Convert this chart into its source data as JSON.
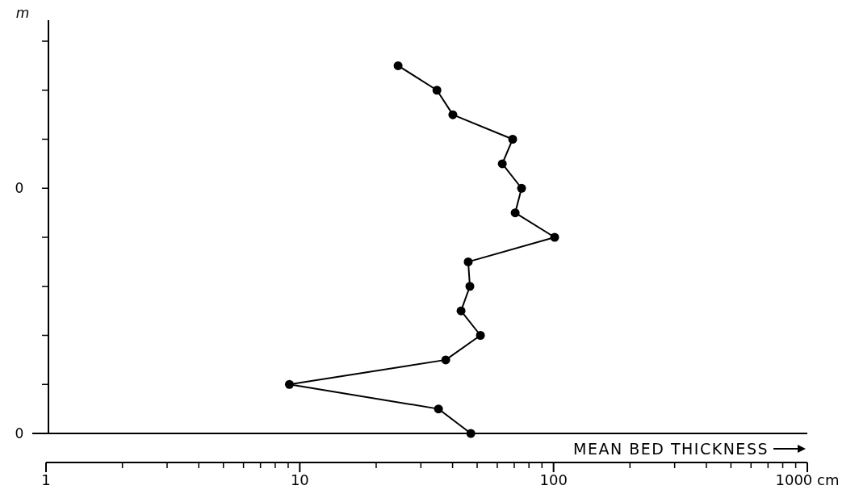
{
  "chart_data": {
    "type": "line",
    "orientation": "horizontal",
    "xlabel": "MEAN BED THICKNESS",
    "ylabel": "m",
    "log": "x",
    "xlim": [
      1,
      1000
    ],
    "xticks": [
      1,
      10,
      100,
      {
        "value": 1000,
        "label": "1000 cm"
      }
    ],
    "categories": [
      null,
      null,
      null,
      null,
      null,
      null,
      "0",
      null,
      null,
      null,
      null,
      null,
      null,
      null,
      null,
      null,
      "0"
    ],
    "grid": false,
    "marker": "circle",
    "line_style": "solid",
    "series": [
      {
        "color": "#000000",
        "values": [
          null,
          24.4,
          34.7,
          40.1,
          69,
          62.8,
          74.8,
          70.6,
          101,
          46.1,
          46.8,
          43.2,
          51.5,
          37.6,
          9.1,
          35.2,
          47.2
        ]
      }
    ]
  }
}
